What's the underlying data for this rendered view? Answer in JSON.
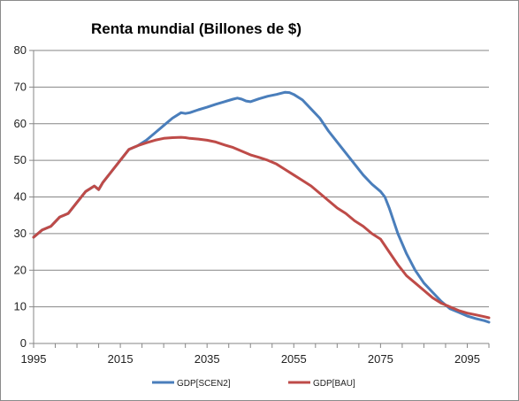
{
  "chart_data": {
    "type": "line",
    "title": "Renta mundial (Billones de $)",
    "xlabel": "",
    "ylabel": "",
    "xlim": [
      1995,
      2100
    ],
    "ylim": [
      0,
      80
    ],
    "x_ticks": [
      "1995",
      "2015",
      "2035",
      "2055",
      "2075",
      "2095"
    ],
    "y_ticks": [
      "0",
      "10",
      "20",
      "30",
      "40",
      "50",
      "60",
      "70",
      "80"
    ],
    "grid": "horizontal",
    "legend_position": "bottom",
    "series": [
      {
        "name": "GDP[SCEN2]",
        "color": "#4a7ebb",
        "x": [
          1995,
          1997,
          1999,
          2001,
          2003,
          2005,
          2007,
          2009,
          2010,
          2011,
          2013,
          2015,
          2017,
          2019,
          2021,
          2023,
          2025,
          2027,
          2029,
          2030,
          2031,
          2033,
          2035,
          2037,
          2039,
          2041,
          2042,
          2043,
          2044,
          2045,
          2047,
          2049,
          2051,
          2053,
          2054,
          2055,
          2057,
          2059,
          2061,
          2063,
          2065,
          2067,
          2069,
          2071,
          2073,
          2075,
          2076,
          2077,
          2079,
          2081,
          2083,
          2085,
          2087,
          2089,
          2091,
          2093,
          2095,
          2097,
          2099,
          2100
        ],
        "values": [
          29,
          31,
          32,
          34.5,
          35.5,
          38.5,
          41.5,
          43,
          42,
          44,
          47,
          50,
          53,
          54,
          55.5,
          57.5,
          59.5,
          61.5,
          63,
          62.8,
          63,
          63.8,
          64.5,
          65.3,
          66,
          66.7,
          67,
          66.7,
          66.2,
          66,
          66.8,
          67.5,
          68,
          68.6,
          68.5,
          68,
          66.5,
          64,
          61.5,
          58,
          55,
          52,
          49,
          46,
          43.5,
          41.5,
          40,
          37,
          30,
          24.5,
          20,
          16.5,
          14,
          11.5,
          9.5,
          8.5,
          7.5,
          6.8,
          6.2,
          5.8
        ]
      },
      {
        "name": "GDP[BAU]",
        "color": "#be4b48",
        "x": [
          1995,
          1997,
          1999,
          2001,
          2003,
          2005,
          2007,
          2009,
          2010,
          2011,
          2013,
          2015,
          2017,
          2019,
          2021,
          2023,
          2025,
          2027,
          2029,
          2030,
          2031,
          2033,
          2035,
          2037,
          2039,
          2041,
          2043,
          2045,
          2047,
          2049,
          2051,
          2053,
          2055,
          2057,
          2059,
          2061,
          2063,
          2065,
          2067,
          2069,
          2071,
          2073,
          2075,
          2077,
          2079,
          2081,
          2083,
          2085,
          2087,
          2089,
          2091,
          2093,
          2095,
          2097,
          2099,
          2100
        ],
        "values": [
          29,
          31,
          32,
          34.5,
          35.5,
          38.5,
          41.5,
          43,
          42,
          44,
          47,
          50,
          53,
          54,
          54.8,
          55.5,
          56,
          56.2,
          56.3,
          56.2,
          56,
          55.8,
          55.5,
          55,
          54.2,
          53.5,
          52.5,
          51.5,
          50.8,
          50,
          49,
          47.5,
          46,
          44.5,
          43,
          41,
          39,
          37,
          35.5,
          33.5,
          32,
          30,
          28.5,
          25,
          21.5,
          18.5,
          16.5,
          14.5,
          12.5,
          11,
          10,
          9,
          8.3,
          7.8,
          7.3,
          7
        ]
      }
    ]
  }
}
